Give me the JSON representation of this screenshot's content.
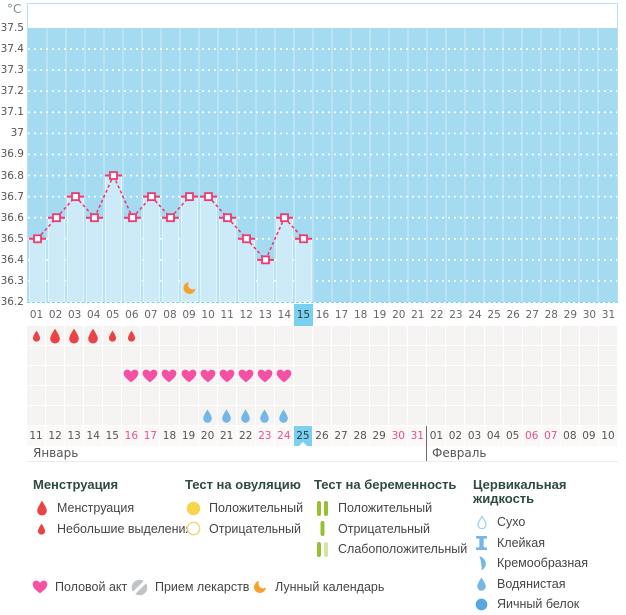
{
  "chart_data": {
    "type": "line",
    "title": "",
    "unit": "°C",
    "x_days": [
      1,
      2,
      3,
      4,
      5,
      6,
      7,
      8,
      9,
      10,
      11,
      12,
      13,
      14,
      15
    ],
    "values": [
      36.5,
      36.6,
      36.7,
      36.6,
      36.8,
      36.6,
      36.7,
      36.6,
      36.7,
      36.7,
      36.6,
      36.5,
      36.4,
      36.6,
      36.5
    ],
    "y_ticks": [
      "37.5",
      "37.4",
      "37.3",
      "37.2",
      "37.1",
      "37",
      "36.9",
      "36.8",
      "36.7",
      "36.6",
      "36.5",
      "36.4",
      "36.3",
      "36.2"
    ],
    "ylim": [
      36.2,
      37.5
    ],
    "x_total_days": 31,
    "grid": "horizontal dotted white lines, vertical day separators",
    "annotations": [
      {
        "type": "lunar-moon",
        "day": 9
      }
    ]
  },
  "events": {
    "menstruation": [
      {
        "day": 1,
        "size": "small"
      },
      {
        "day": 2,
        "size": "large"
      },
      {
        "day": 3,
        "size": "large"
      },
      {
        "day": 4,
        "size": "large"
      },
      {
        "day": 5,
        "size": "small"
      },
      {
        "day": 6,
        "size": "small"
      }
    ],
    "intercourse_days": [
      6,
      7,
      8,
      9,
      10,
      11,
      12,
      13,
      14
    ],
    "cervical_fluid_days": [
      10,
      11,
      12,
      13,
      14
    ],
    "lunar_calendar_day": 9
  },
  "calendar": {
    "cycle_days": [
      "01",
      "02",
      "03",
      "04",
      "05",
      "06",
      "07",
      "08",
      "09",
      "10",
      "11",
      "12",
      "13",
      "14",
      "15",
      "16",
      "17",
      "18",
      "19",
      "20",
      "21",
      "22",
      "23",
      "24",
      "25",
      "26",
      "27",
      "28",
      "29",
      "30",
      "31"
    ],
    "selected_day_index": 14,
    "dates": [
      "11",
      "12",
      "13",
      "14",
      "15",
      "16",
      "17",
      "18",
      "19",
      "20",
      "21",
      "22",
      "23",
      "24",
      "25",
      "26",
      "27",
      "28",
      "29",
      "30",
      "31",
      "01",
      "02",
      "03",
      "04",
      "05",
      "06",
      "07",
      "08",
      "09",
      "10"
    ],
    "weekend_indices": [
      5,
      6,
      12,
      13,
      19,
      20,
      26,
      27
    ],
    "selected_date_index": 14,
    "months": [
      {
        "label": "Январь"
      },
      {
        "label": "Февраль"
      }
    ]
  },
  "colors": {
    "plot_bg": "#a4dbf0",
    "column_fill": "#cdeaf8",
    "column_edge": "#e2f4fc",
    "line": "#ee3a70",
    "highlight": "#7bcfef",
    "weekend": "#ee4e8a",
    "menstruation": "#ea4343",
    "heart": "#f551a4",
    "cervical": "#74b7e6",
    "cervical_light": "#9ed1ec",
    "cervical_dark": "#58a6df",
    "moon": "#f5a12b",
    "ovulation": "#f6d44c",
    "ovulation_outline": "#eed77a",
    "pregnancy": "#95c02f",
    "pregnancy_weak": "#d3e5a2",
    "medication": "#c1c4c7"
  },
  "legend": {
    "sections": [
      {
        "id": "menstruation",
        "title": "Менструация",
        "items": [
          {
            "icon": "menstruation-large",
            "label": "Менструация"
          },
          {
            "icon": "menstruation-small",
            "label": "Небольшие выделения"
          }
        ]
      },
      {
        "id": "ovulation-test",
        "title": "Тест на овуляцию",
        "items": [
          {
            "icon": "ovulation-positive",
            "label": "Положительный"
          },
          {
            "icon": "ovulation-negative",
            "label": "Отрицательный"
          }
        ]
      },
      {
        "id": "pregnancy-test",
        "title": "Тест на беременность",
        "items": [
          {
            "icon": "pregnancy-positive",
            "label": "Положительный"
          },
          {
            "icon": "pregnancy-negative",
            "label": "Отрицательный"
          },
          {
            "icon": "pregnancy-weak",
            "label": "Слабоположительный"
          }
        ]
      },
      {
        "id": "cervical-fluid",
        "title": "Цервикальная жидкость",
        "items": [
          {
            "icon": "cf-dry",
            "label": "Сухо"
          },
          {
            "icon": "cf-sticky",
            "label": "Клейкая"
          },
          {
            "icon": "cf-creamy",
            "label": "Кремообразная"
          },
          {
            "icon": "cf-watery",
            "label": "Водянистая"
          },
          {
            "icon": "cf-eggwhite",
            "label": "Яичный белок"
          }
        ]
      }
    ],
    "footer_items": [
      {
        "icon": "intercourse",
        "label": "Половой акт"
      },
      {
        "icon": "medication",
        "label": "Прием лекарств"
      },
      {
        "icon": "lunar",
        "label": "Лунный календарь"
      }
    ]
  }
}
